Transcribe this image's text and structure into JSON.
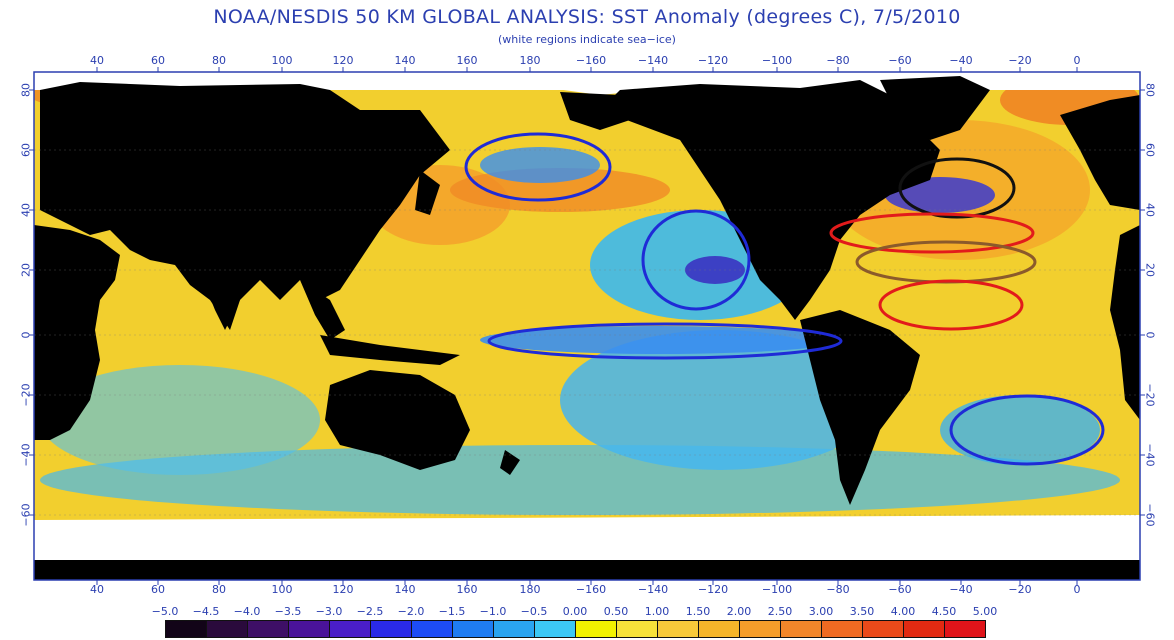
{
  "title": "NOAA/NESDIS 50 KM GLOBAL ANALYSIS: SST Anomaly (degrees C), 7/5/2010",
  "subtitle": "(white regions indicate sea−ice)",
  "axes": {
    "lon_ticks": [
      "40",
      "60",
      "80",
      "100",
      "120",
      "140",
      "160",
      "180",
      "−160",
      "−140",
      "−120",
      "−100",
      "−80",
      "−60",
      "−40",
      "−20",
      "0"
    ],
    "lat_ticks_left": [
      "80",
      "60",
      "40",
      "20",
      "0",
      "−20",
      "−40",
      "−60"
    ],
    "lat_ticks_right": [
      "80",
      "60",
      "40",
      "20",
      "0",
      "−20",
      "−40",
      "−60"
    ]
  },
  "color_scale": {
    "labels": [
      "−5.0",
      "−4.5",
      "−4.0",
      "−3.5",
      "−3.0",
      "−2.5",
      "−2.0",
      "−1.5",
      "−1.0",
      "−0.5",
      "0.00",
      "0.50",
      "1.00",
      "1.50",
      "2.00",
      "2.50",
      "3.00",
      "3.50",
      "4.00",
      "4.50",
      "5.00"
    ],
    "colors": [
      "#120418",
      "#2a0a3c",
      "#3e0f66",
      "#4a139a",
      "#4a1ec8",
      "#2a2ae8",
      "#1d4cf5",
      "#1f7cf2",
      "#2aa4f0",
      "#3cc8f5",
      "#f2f200",
      "#f7e23a",
      "#f7c93a",
      "#f5b52a",
      "#f59d2a",
      "#f2862a",
      "#ef6a22",
      "#ea4a1a",
      "#e22a12",
      "#e0141a"
    ]
  },
  "colors": {
    "land": "#000000",
    "sea_ice": "#ffffff",
    "frame": "#2b3fb0",
    "ocean_base": "#f2cf2e",
    "cool_anomaly": "#3cb8ee",
    "cold_anomaly": "#2f4fe0"
  },
  "annotations": [
    {
      "name": "north-pacific-ellipse",
      "color": "#1f2bd6"
    },
    {
      "name": "ne-pacific-ellipse",
      "color": "#1f2bd6"
    },
    {
      "name": "equatorial-pacific-ellipse",
      "color": "#1f2bd6"
    },
    {
      "name": "north-atlantic-ellipse",
      "color": "#111111"
    },
    {
      "name": "subtropical-atlantic-ellipse-red",
      "color": "#e21b1b"
    },
    {
      "name": "subtropical-atlantic-ellipse-brown",
      "color": "#8b5a2b"
    },
    {
      "name": "tropical-atlantic-ellipse",
      "color": "#e21b1b"
    },
    {
      "name": "south-atlantic-ellipse",
      "color": "#1f2bd6"
    }
  ]
}
